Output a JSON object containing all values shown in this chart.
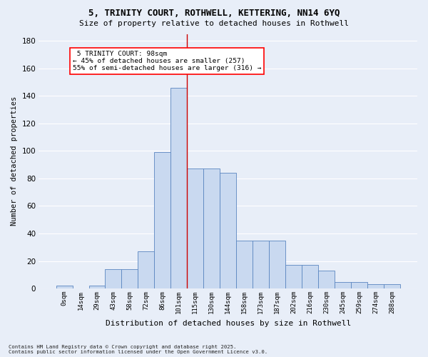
{
  "title_line1": "5, TRINITY COURT, ROTHWELL, KETTERING, NN14 6YQ",
  "title_line2": "Size of property relative to detached houses in Rothwell",
  "xlabel": "Distribution of detached houses by size in Rothwell",
  "ylabel": "Number of detached properties",
  "bar_labels": [
    "0sqm",
    "14sqm",
    "29sqm",
    "43sqm",
    "58sqm",
    "72sqm",
    "86sqm",
    "101sqm",
    "115sqm",
    "130sqm",
    "144sqm",
    "158sqm",
    "173sqm",
    "187sqm",
    "202sqm",
    "216sqm",
    "230sqm",
    "245sqm",
    "259sqm",
    "274sqm",
    "288sqm"
  ],
  "bar_values": [
    2,
    0,
    2,
    14,
    14,
    27,
    99,
    146,
    87,
    87,
    84,
    35,
    35,
    35,
    17,
    17,
    13,
    5,
    5,
    3,
    3
  ],
  "bar_color": "#c9d9f0",
  "bar_edge_color": "#5a85c0",
  "ylim": [
    0,
    185
  ],
  "yticks": [
    0,
    20,
    40,
    60,
    80,
    100,
    120,
    140,
    160,
    180
  ],
  "annotation_title": "5 TRINITY COURT: 98sqm",
  "annotation_line2": "← 45% of detached houses are smaller (257)",
  "annotation_line3": "55% of semi-detached houses are larger (316) →",
  "footnote1": "Contains HM Land Registry data © Crown copyright and database right 2025.",
  "footnote2": "Contains public sector information licensed under the Open Government Licence v3.0.",
  "bg_color": "#e8eef8",
  "plot_bg_color": "#e8eef8",
  "grid_color": "#ffffff",
  "red_line_index": 7.5
}
